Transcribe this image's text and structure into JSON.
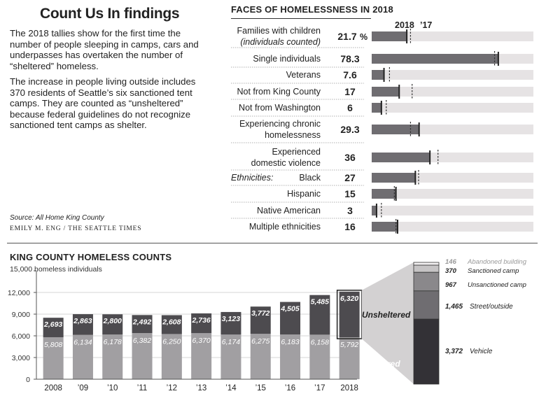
{
  "title": "Count Us In findings",
  "paragraphs": [
    "The 2018 tallies show for the first time the number of people sleeping in camps, cars and underpasses has overtaken the number of “sheltered” homeless.",
    "The increase in people living outside includes 370 residents of Seattle’s six sanctioned tent camps. They are counted as “unsheltered” because federal guidelines do not recognize sanctioned tent camps as shelter."
  ],
  "source": "Source: All Home King County",
  "credit": "EMILY M. ENG / THE SEATTLE TIMES",
  "colors": {
    "dark": "#4d4b4f",
    "mid": "#6f6d71",
    "light": "#a19fa2",
    "track": "#e6e3e4",
    "darkest": "#333136"
  },
  "chart_data": [
    {
      "type": "bar",
      "title": "FACES OF HOMELESSNESS IN 2018",
      "legend": {
        "current": "2018",
        "previous": "’17"
      },
      "unit": "%",
      "xlim": [
        0,
        100
      ],
      "ethnicities_label": "Ethnicities:",
      "rows": [
        {
          "label": [
            "Families with children",
            "(individuals counted)"
          ],
          "italic_line": 1,
          "value": "21.7",
          "suffix": "%",
          "v2018": 21.7,
          "v2017": 24.0
        },
        {
          "label": [
            "Single individuals"
          ],
          "value": "78.3",
          "v2018": 78.3,
          "v2017": 76.0
        },
        {
          "label": [
            "Veterans"
          ],
          "value": "7.6",
          "v2018": 7.6,
          "v2017": 11.0
        },
        {
          "label": [
            "Not from King County"
          ],
          "value": "17",
          "v2018": 17,
          "v2017": 25
        },
        {
          "label": [
            "Not from Washington"
          ],
          "value": "6",
          "v2018": 6,
          "v2017": 9
        },
        {
          "label": [
            "Experiencing chronic",
            "homelessness"
          ],
          "value": "29.3",
          "v2018": 29.3,
          "v2017": 24.0
        },
        {
          "label": [
            "Experienced",
            "domestic violence"
          ],
          "value": "36",
          "v2018": 36,
          "v2017": 41
        },
        {
          "label": [
            "Black"
          ],
          "value": "27",
          "v2018": 27,
          "v2017": 29
        },
        {
          "label": [
            "Hispanic"
          ],
          "value": "15",
          "v2018": 15,
          "v2017": 14
        },
        {
          "label": [
            "Native American"
          ],
          "value": "3",
          "v2018": 3,
          "v2017": 6
        },
        {
          "label": [
            "Multiple ethnicities"
          ],
          "value": "16",
          "v2018": 16,
          "v2017": 15
        }
      ]
    },
    {
      "type": "bar",
      "stacked": true,
      "title": "KING COUNTY HOMELESS COUNTS",
      "ylabel": "15,000 homeless individuals",
      "ylim": [
        0,
        15000
      ],
      "yticks": [
        0,
        3000,
        6000,
        9000,
        12000,
        15000
      ],
      "ytick_labels": [
        "0",
        "3,000",
        "6,000",
        "9,000",
        "12,000"
      ],
      "categories": [
        "2008",
        "’09",
        "’10",
        "’11",
        "’12",
        "’13",
        "’14",
        "’15",
        "’16",
        "’17",
        "2018"
      ],
      "series": [
        {
          "name": "Sheltered",
          "values": [
            5808,
            6134,
            6178,
            6382,
            6250,
            6370,
            6174,
            6275,
            6183,
            6158,
            5792
          ]
        },
        {
          "name": "Unsheltered",
          "values": [
            2693,
            2863,
            2800,
            2492,
            2608,
            2736,
            3123,
            3772,
            4505,
            5485,
            6320
          ]
        }
      ],
      "breakdown_2018_unsheltered": [
        {
          "label": "Abandoned building",
          "value": 146
        },
        {
          "label": "Sanctioned camp",
          "value": 370
        },
        {
          "label": "Unsanctioned camp",
          "value": 967
        },
        {
          "label": "Street/outside",
          "value": 1465
        },
        {
          "label": "Vehicle",
          "value": 3372
        }
      ]
    }
  ]
}
